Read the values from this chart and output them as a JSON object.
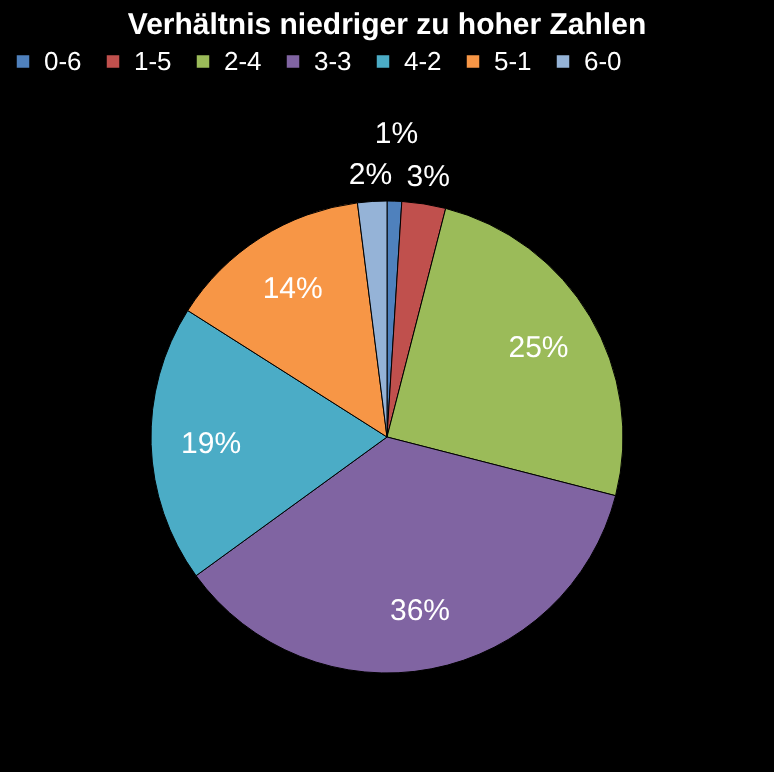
{
  "chart_data": {
    "type": "pie",
    "title": "Verhältnis  niedriger zu hoher Zahlen",
    "categories": [
      "0-6",
      "1-5",
      "2-4",
      "3-3",
      "4-2",
      "5-1",
      "6-0"
    ],
    "values": [
      1,
      3,
      25,
      36,
      19,
      14,
      2
    ],
    "colors": [
      "#4f81bd",
      "#c0504d",
      "#9bbb59",
      "#8064a2",
      "#4bacc6",
      "#f79646",
      "#95b3d7"
    ],
    "value_labels": [
      "1%",
      "3%",
      "25%",
      "36%",
      "19%",
      "14%",
      "2%"
    ],
    "legend": "top"
  }
}
